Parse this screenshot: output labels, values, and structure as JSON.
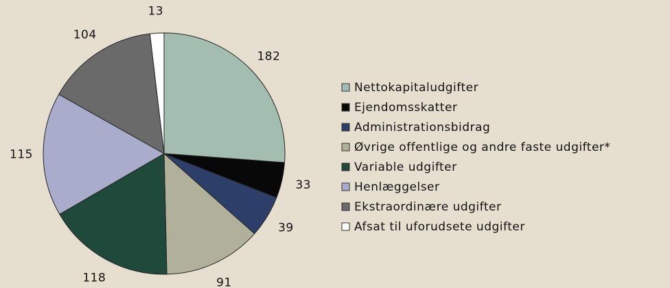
{
  "chart_data": {
    "type": "pie",
    "categories": [
      "Nettokapitaludgifter",
      "Ejendomsskatter",
      "Administrationsbidrag",
      "Øvrige offentlige og andre faste udgifter*",
      "Variable udgifter",
      "Henlæggelser",
      "Ekstraordinære udgifter",
      "Afsat til uforudsete udgifter"
    ],
    "values": [
      182,
      33,
      39,
      91,
      118,
      115,
      104,
      13
    ],
    "colors": [
      "#a3bdb0",
      "#080808",
      "#2d3f68",
      "#b1b19b",
      "#1f4a3b",
      "#aaaccb",
      "#6a6a6a",
      "#ffffff"
    ],
    "legend": "right"
  }
}
